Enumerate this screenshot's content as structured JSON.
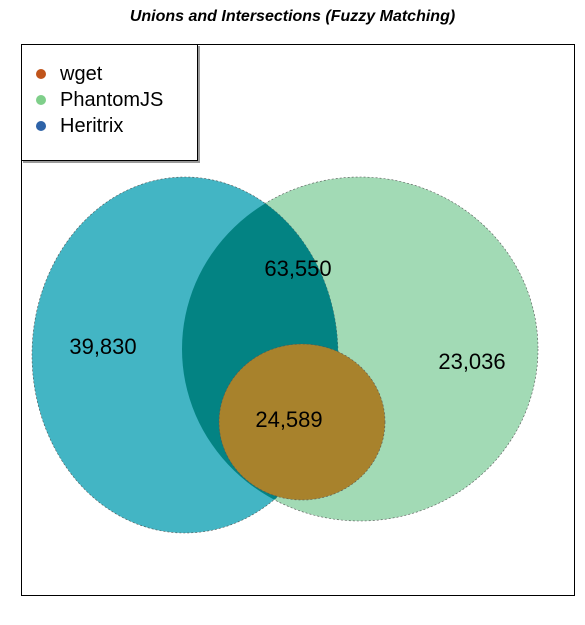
{
  "title": "Unions and Intersections (Fuzzy Matching)",
  "legend": {
    "items": [
      {
        "label": "wget",
        "color": "#c0541b"
      },
      {
        "label": "PhantomJS",
        "color": "#7fcf8a"
      },
      {
        "label": "Heritrix",
        "color": "#2e63a8"
      }
    ]
  },
  "sets": {
    "heritrix_color": "#43b5c4",
    "phantomjs_color": "#a2dab5",
    "overlap_color": "#038383",
    "wget_color": "#a8822c"
  },
  "counts": {
    "heritrix_only": "39,830",
    "heritrix_phantomjs": "63,550",
    "phantomjs_only": "23,036",
    "all_three": "24,589"
  }
}
